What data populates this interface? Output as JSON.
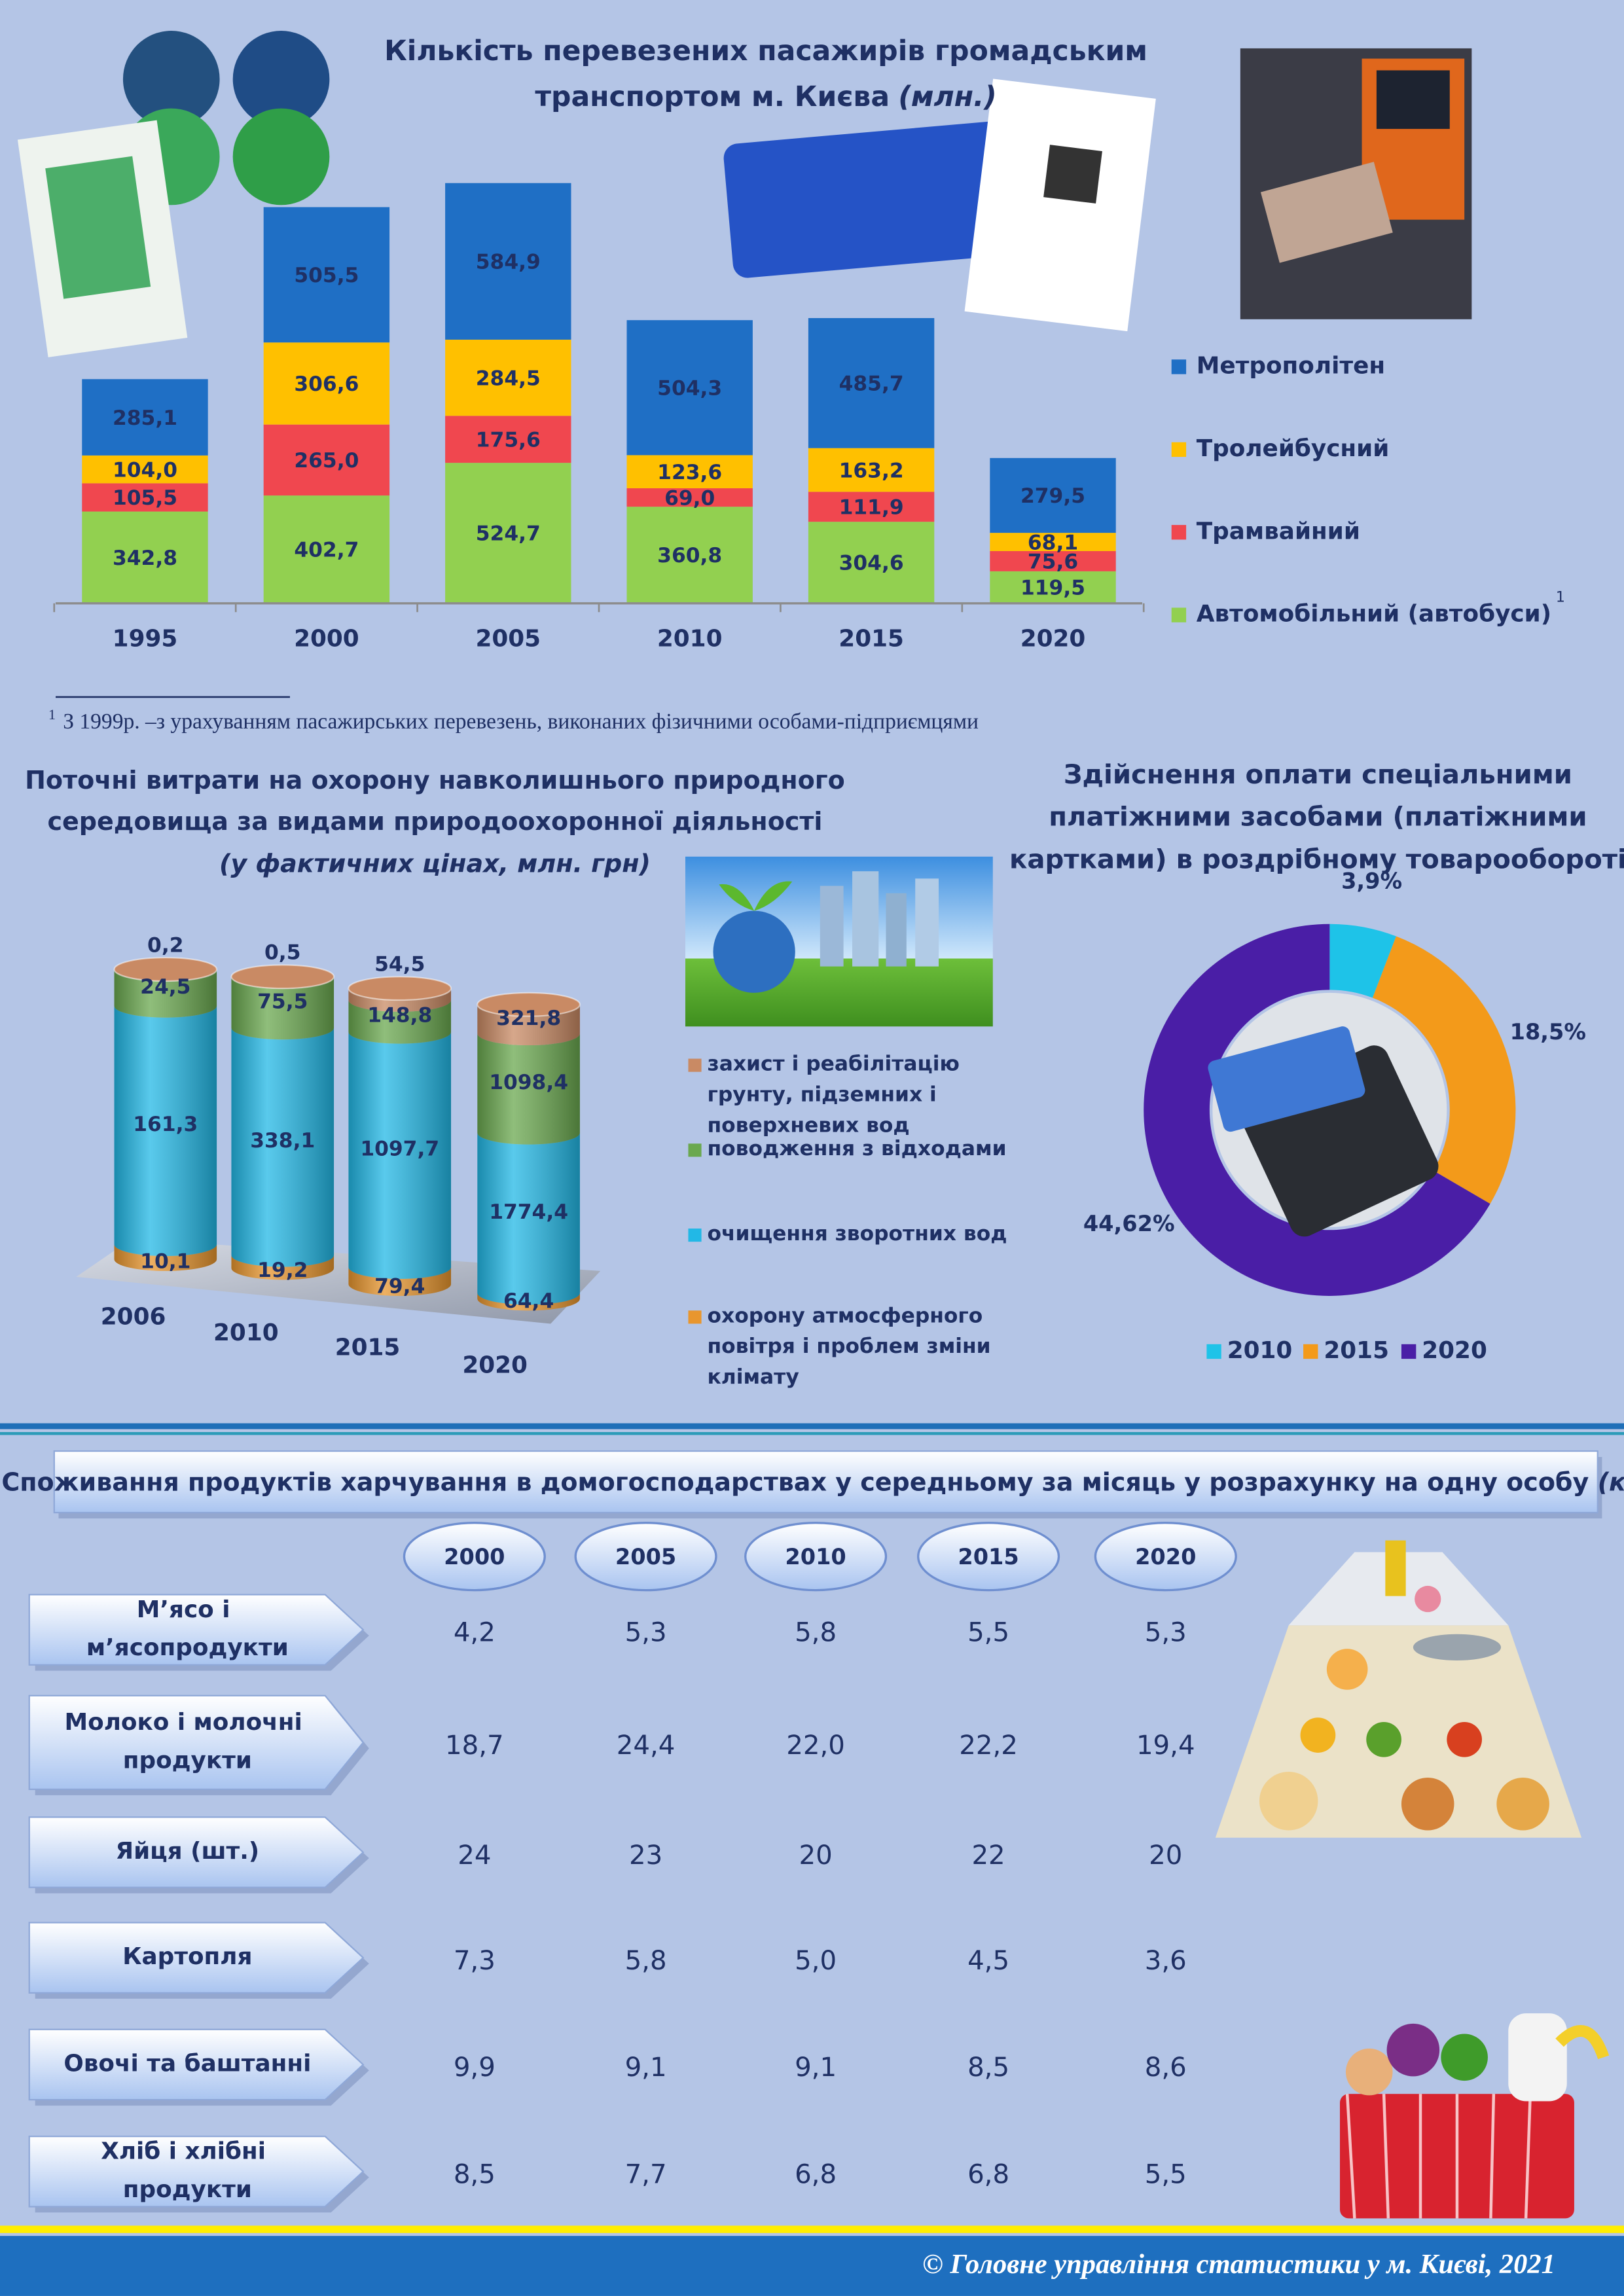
{
  "chart_data": [
    {
      "type": "bar",
      "stacked": true,
      "title": [
        "Кількість перевезених пасажирів громадським",
        "транспортом м. Києва"
      ],
      "title_unit": "(млн.)",
      "categories": [
        "1995",
        "2000",
        "2005",
        "2010",
        "2015",
        "2020"
      ],
      "series": [
        {
          "name": "Автомобільний (автобуси)",
          "color": "#92d050",
          "values": [
            342.8,
            402.7,
            524.7,
            360.8,
            304.6,
            119.5
          ],
          "value_labels": [
            "342,8",
            "402,7",
            "524,7",
            "360,8",
            "304,6",
            "119,5"
          ]
        },
        {
          "name": "Трамвайний",
          "color": "#f0474f",
          "values": [
            105.5,
            265.0,
            175.6,
            69.0,
            111.9,
            75.6
          ],
          "value_labels": [
            "105,5",
            "265,0",
            "175,6",
            "69,0",
            "111,9",
            "75,6"
          ]
        },
        {
          "name": "Тролейбусний",
          "color": "#ffc000",
          "values": [
            104.0,
            306.6,
            284.5,
            123.6,
            163.2,
            68.1
          ],
          "value_labels": [
            "104,0",
            "306,6",
            "284,5",
            "123,6",
            "163,2",
            "68,1"
          ]
        },
        {
          "name": "Метрополітен",
          "color": "#1f6fc5",
          "values": [
            285.1,
            505.5,
            584.9,
            504.3,
            485.7,
            279.5
          ],
          "value_labels": [
            "285,1",
            "505,5",
            "584,9",
            "504,3",
            "485,7",
            "279,5"
          ]
        }
      ],
      "legend": "right",
      "footnote": {
        "marker": "1",
        "text": "З 1999р. –з урахуванням пасажирських перевезень, виконаних фізичними особами-підприємцями"
      }
    },
    {
      "type": "cylinder",
      "stacked": "percent",
      "title": [
        "Поточні витрати  на охорону навколишнього природного",
        "середовища за видами природоохоронної діяльності"
      ],
      "subtitle": "(у фактичних цінах, млн. грн)",
      "categories": [
        "2006",
        "2010",
        "2015",
        "2020"
      ],
      "series": [
        {
          "name": "охорону атмосферного повітря і проблем зміни клімату",
          "color": "#e8962e",
          "values": [
            10.1,
            19.2,
            79.4,
            64.4
          ],
          "value_labels": [
            "10,1",
            "19,2",
            "79,4",
            "64,4"
          ]
        },
        {
          "name": "очищення зворотних вод",
          "color": "#22b8e6",
          "values": [
            161.3,
            338.1,
            1097.7,
            1774.4
          ],
          "value_labels": [
            "161,3",
            "338,1",
            "1097,7",
            "1774,4"
          ]
        },
        {
          "name": "поводження з відходами",
          "color": "#6aa84f",
          "values": [
            24.5,
            75.5,
            148.8,
            1098.4
          ],
          "value_labels": [
            "24,5",
            "75,5",
            "148,8",
            "1098,4"
          ]
        },
        {
          "name": "захист і реабілітацію грунту, підземних і поверхневих вод",
          "color": "#c98a64",
          "values": [
            0.2,
            0.5,
            54.5,
            321.8
          ],
          "value_labels": [
            "0,2",
            "0,5",
            "54,5",
            "321,8"
          ]
        }
      ]
    },
    {
      "type": "donut",
      "title": [
        "Здійснення оплати спеціальними",
        "платіжними засобами (платіжними",
        "картками) в роздрібному товарообороті"
      ],
      "categories": [
        "2010",
        "2015",
        "2020"
      ],
      "values": [
        3.9,
        18.5,
        44.62
      ],
      "value_labels": [
        "3,9%",
        "18,5%",
        "44,62%"
      ],
      "colors": [
        "#1ec3e8",
        "#f39a1a",
        "#4a1ea6"
      ],
      "legend": "bottom"
    }
  ],
  "table": {
    "title": "Споживання продуктів харчування в домогосподарствах у середньому за місяць у розрахунку на одну особу",
    "title_unit": "(кг)",
    "columns": [
      "2000",
      "2005",
      "2010",
      "2015",
      "2020"
    ],
    "rows": [
      {
        "label": "М’ясо і м’ясопродукти",
        "values": [
          "4,2",
          "5,3",
          "5,8",
          "5,5",
          "5,3"
        ]
      },
      {
        "label": "Молоко і молочні продукти",
        "values": [
          "18,7",
          "24,4",
          "22,0",
          "22,2",
          "19,4"
        ]
      },
      {
        "label": "Яйця (шт.)",
        "values": [
          "24",
          "23",
          "20",
          "22",
          "20"
        ]
      },
      {
        "label": "Картопля",
        "values": [
          "7,3",
          "5,8",
          "5,0",
          "4,5",
          "3,6"
        ]
      },
      {
        "label": "Овочі та баштанні",
        "values": [
          "9,9",
          "9,1",
          "9,1",
          "8,5",
          "8,6"
        ]
      },
      {
        "label": "Хліб і хлібні продукти",
        "values": [
          "8,5",
          "7,7",
          "6,8",
          "6,8",
          "5,5"
        ]
      }
    ]
  },
  "footer": "© Головне управління статистики у м. Києві, 2021"
}
